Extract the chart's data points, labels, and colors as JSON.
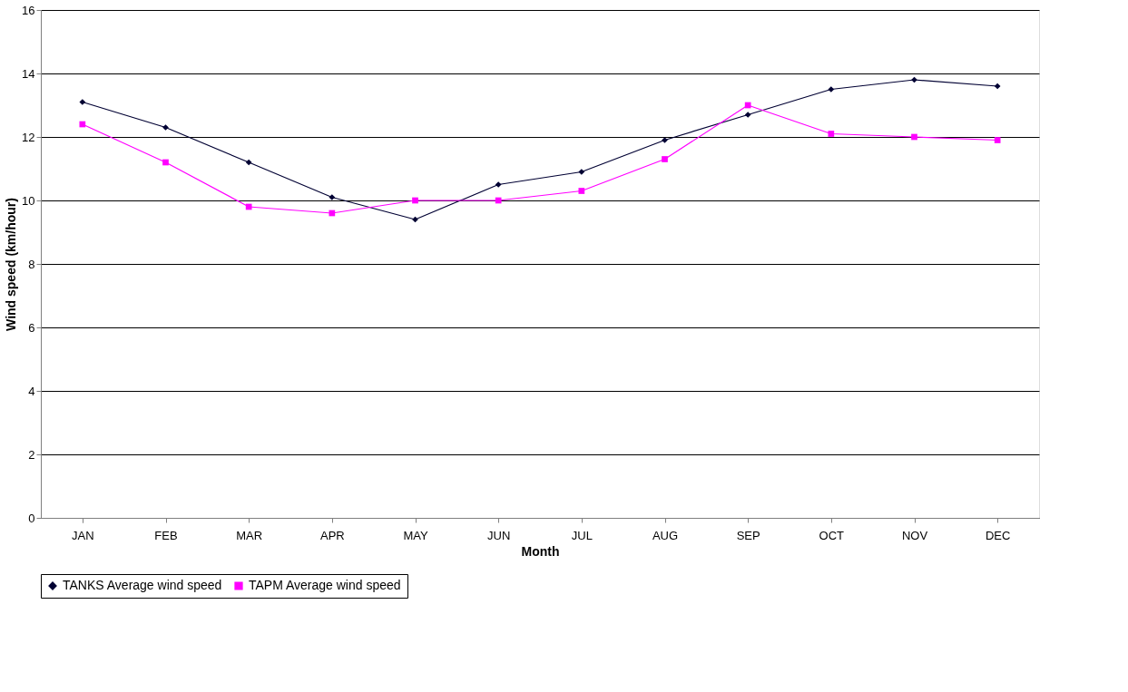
{
  "chart_data": {
    "type": "line",
    "xlabel": "Month",
    "ylabel": "Wind speed (km/hour)",
    "categories": [
      "JAN",
      "FEB",
      "MAR",
      "APR",
      "MAY",
      "JUN",
      "JUL",
      "AUG",
      "SEP",
      "OCT",
      "NOV",
      "DEC"
    ],
    "series": [
      {
        "name": "TANKS Average wind speed",
        "color": "#000033",
        "marker": "diamond",
        "values": [
          13.1,
          12.3,
          11.2,
          10.1,
          9.4,
          10.5,
          10.9,
          11.9,
          12.7,
          13.5,
          13.8,
          13.6
        ]
      },
      {
        "name": "TAPM Average wind speed",
        "color": "#ff00ff",
        "marker": "square",
        "values": [
          12.4,
          11.2,
          9.8,
          9.6,
          10.0,
          10.0,
          10.3,
          11.3,
          13.0,
          12.1,
          12.0,
          11.9
        ]
      }
    ],
    "ylim": [
      0,
      16
    ],
    "yticks": [
      0,
      2,
      4,
      6,
      8,
      10,
      12,
      14,
      16
    ],
    "grid": "y",
    "legend": "bottom",
    "line_style": "solid"
  }
}
